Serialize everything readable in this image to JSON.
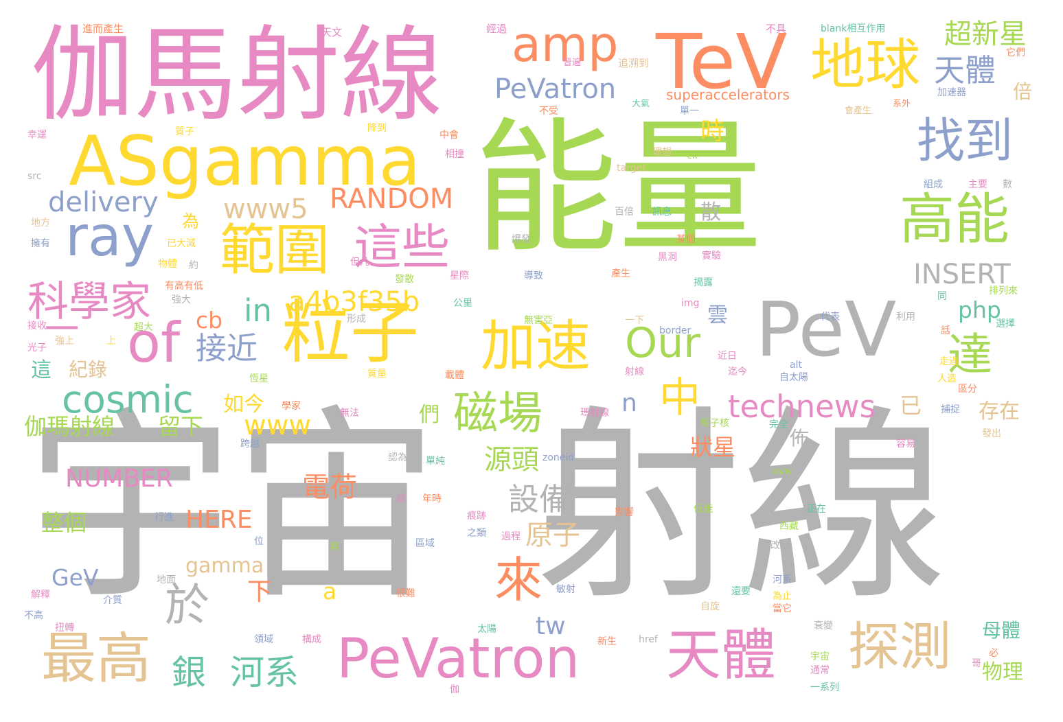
{
  "palette": {
    "pink": "#e78ac3",
    "yellow": "#ffd92f",
    "green": "#a6d854",
    "gray": "#b3b3b3",
    "orange": "#fc8d62",
    "blue": "#8da0cb",
    "teal": "#66c2a5",
    "tan": "#e5c494"
  },
  "words": [
    {
      "text": "能量",
      "color": "#a6d854"
    },
    {
      "text": "宇宙",
      "color": "#b3b3b3"
    },
    {
      "text": "射線",
      "color": "#b3b3b3"
    },
    {
      "text": "伽馬射線",
      "color": "#e78ac3"
    },
    {
      "text": "TeV",
      "color": "#fc8d62"
    },
    {
      "text": "PeV",
      "color": "#b3b3b3"
    },
    {
      "text": "ASgamma",
      "color": "#ffd92f"
    },
    {
      "text": "粒子",
      "color": "#ffd92f"
    },
    {
      "text": "amp",
      "color": "#fc8d62"
    },
    {
      "text": "地球",
      "color": "#ffd92f"
    },
    {
      "text": "ray",
      "color": "#8da0cb"
    },
    {
      "text": "範圍",
      "color": "#ffd92f"
    },
    {
      "text": "這些",
      "color": "#e78ac3"
    },
    {
      "text": "高能",
      "color": "#a6d854"
    },
    {
      "text": "找到",
      "color": "#8da0cb"
    },
    {
      "text": "加速",
      "color": "#ffd92f"
    },
    {
      "text": "of",
      "color": "#e78ac3"
    },
    {
      "text": "PeVatron",
      "color": "#e78ac3"
    },
    {
      "text": "天體",
      "color": "#e78ac3"
    },
    {
      "text": "探測",
      "color": "#e5c494"
    },
    {
      "text": "最高",
      "color": "#e5c494"
    },
    {
      "text": "磁場",
      "color": "#a6d854"
    },
    {
      "text": "科學家",
      "color": "#e78ac3"
    },
    {
      "text": "cosmic",
      "color": "#66c2a5"
    },
    {
      "text": "達",
      "color": "#a6d854"
    },
    {
      "text": "來",
      "color": "#fc8d62"
    },
    {
      "text": "中",
      "color": "#ffd92f"
    },
    {
      "text": "於",
      "color": "#b3b3b3"
    },
    {
      "text": "Our",
      "color": "#a6d854"
    },
    {
      "text": "PeVatron",
      "color": "#8da0cb"
    },
    {
      "text": "delivery",
      "color": "#8da0cb"
    },
    {
      "text": "www5",
      "color": "#e5c494"
    },
    {
      "text": "RANDOM",
      "color": "#fc8d62"
    },
    {
      "text": "INSERT",
      "color": "#b3b3b3"
    },
    {
      "text": "a4b3f35b",
      "color": "#ffd92f"
    },
    {
      "text": "technews",
      "color": "#e78ac3"
    },
    {
      "text": "NUMBER",
      "color": "#e78ac3"
    },
    {
      "text": "天體",
      "color": "#8da0cb"
    },
    {
      "text": "超新星",
      "color": "#a6d854"
    },
    {
      "text": "銀",
      "color": "#66c2a5"
    },
    {
      "text": "河系",
      "color": "#66c2a5"
    },
    {
      "text": "一",
      "color": "#e78ac3"
    },
    {
      "text": "in",
      "color": "#66c2a5"
    },
    {
      "text": "接近",
      "color": "#8da0cb"
    },
    {
      "text": "www",
      "color": "#ffd92f"
    },
    {
      "text": "源頭",
      "color": "#a6d854"
    },
    {
      "text": "設備",
      "color": "#b3b3b3"
    },
    {
      "text": "原子",
      "color": "#e5c494"
    },
    {
      "text": "電荷",
      "color": "#fc8d62"
    },
    {
      "text": "伽瑪射線",
      "color": "#a6d854"
    },
    {
      "text": "留下",
      "color": "#a6d854"
    },
    {
      "text": "整個",
      "color": "#a6d854"
    },
    {
      "text": "HERE",
      "color": "#fc8d62"
    },
    {
      "text": "gamma",
      "color": "#e5c494"
    },
    {
      "text": "GeV",
      "color": "#8da0cb"
    },
    {
      "text": "php",
      "color": "#66c2a5"
    },
    {
      "text": "已",
      "color": "#e5c494"
    },
    {
      "text": "存在",
      "color": "#e5c494"
    },
    {
      "text": "狀星",
      "color": "#fc8d62"
    },
    {
      "text": "cb",
      "color": "#fc8d62"
    },
    {
      "text": "tw",
      "color": "#8da0cb"
    },
    {
      "text": "下",
      "color": "#fc8d62"
    },
    {
      "text": "a",
      "color": "#ffd92f"
    },
    {
      "text": "n",
      "color": "#8da0cb"
    },
    {
      "text": "們",
      "color": "#a6d854"
    },
    {
      "text": "時",
      "color": "#ffd92f"
    },
    {
      "text": "為",
      "color": "#ffd92f"
    },
    {
      "text": "散",
      "color": "#b3b3b3"
    },
    {
      "text": "雲",
      "color": "#8da0cb"
    },
    {
      "text": "如今",
      "color": "#ffd92f"
    },
    {
      "text": "這",
      "color": "#66c2a5"
    },
    {
      "text": "紀錄",
      "color": "#e5c494"
    },
    {
      "text": "佈",
      "color": "#b3b3b3"
    },
    {
      "text": "倍",
      "color": "#e5c494"
    },
    {
      "text": "母體",
      "color": "#66c2a5"
    },
    {
      "text": "物理",
      "color": "#a6d854"
    },
    {
      "text": "superaccelerators",
      "color": "#fc8d62"
    },
    {
      "text": "進而產生",
      "color": "#fc8d62"
    },
    {
      "text": "天文",
      "color": "#e78ac3"
    },
    {
      "text": "經過",
      "color": "#e78ac3"
    },
    {
      "text": "不具",
      "color": "#e78ac3"
    },
    {
      "text": "blank相互作用",
      "color": "#66c2a5"
    },
    {
      "text": "它們",
      "color": "#fc8d62"
    },
    {
      "text": "晉遍",
      "color": "#e78ac3"
    },
    {
      "text": "追溯到",
      "color": "#e5c494"
    },
    {
      "text": "加速器",
      "color": "#8da0cb"
    },
    {
      "text": "大氣",
      "color": "#66c2a5"
    },
    {
      "text": "單一",
      "color": "#8da0cb"
    },
    {
      "text": "不受",
      "color": "#fc8d62"
    },
    {
      "text": "會產生",
      "color": "#e5c494"
    },
    {
      "text": "系外",
      "color": "#fc8d62"
    },
    {
      "text": "質子",
      "color": "#ffd92f"
    },
    {
      "text": "降到",
      "color": "#ffd92f"
    },
    {
      "text": "中會",
      "color": "#fc8d62"
    },
    {
      "text": "理想",
      "color": "#e5c494"
    },
    {
      "text": "ck",
      "color": "#a6d854"
    },
    {
      "text": "幸運",
      "color": "#e78ac3"
    },
    {
      "text": "相撞",
      "color": "#e78ac3"
    },
    {
      "text": "target",
      "color": "#e5c494"
    },
    {
      "text": "src",
      "color": "#b3b3b3"
    },
    {
      "text": "組成",
      "color": "#8da0cb"
    },
    {
      "text": "主要",
      "color": "#e78ac3"
    },
    {
      "text": "數",
      "color": "#b3b3b3"
    },
    {
      "text": "地方",
      "color": "#e5c494"
    },
    {
      "text": "百倍",
      "color": "#b3b3b3"
    },
    {
      "text": "訊息",
      "color": "#66c2a5"
    },
    {
      "text": "擁有",
      "color": "#8da0cb"
    },
    {
      "text": "爆發",
      "color": "#b3b3b3"
    },
    {
      "text": "某個",
      "color": "#fc8d62"
    },
    {
      "text": "已大減",
      "color": "#ffd92f"
    },
    {
      "text": "黑洞",
      "color": "#e78ac3"
    },
    {
      "text": "實驗",
      "color": "#e78ac3"
    },
    {
      "text": "物體",
      "color": "#ffd92f"
    },
    {
      "text": "約",
      "color": "#b3b3b3"
    },
    {
      "text": "有高有低",
      "color": "#fc8d62"
    },
    {
      "text": "但凡",
      "color": "#e78ac3"
    },
    {
      "text": "發散",
      "color": "#a6d854"
    },
    {
      "text": "星際",
      "color": "#e78ac3"
    },
    {
      "text": "導致",
      "color": "#8da0cb"
    },
    {
      "text": "產生",
      "color": "#fc8d62"
    },
    {
      "text": "揭露",
      "color": "#66c2a5"
    },
    {
      "text": "排列來",
      "color": "#a6d854"
    },
    {
      "text": "強大",
      "color": "#b3b3b3"
    },
    {
      "text": "公里",
      "color": "#66c2a5"
    },
    {
      "text": "同",
      "color": "#66c2a5"
    },
    {
      "text": "形成",
      "color": "#b3b3b3"
    },
    {
      "text": "無害亞",
      "color": "#a6d854"
    },
    {
      "text": "一下",
      "color": "#e5c494"
    },
    {
      "text": "img",
      "color": "#e78ac3"
    },
    {
      "text": "代表",
      "color": "#8da0cb"
    },
    {
      "text": "利用",
      "color": "#b3b3b3"
    },
    {
      "text": "選擇",
      "color": "#66c2a5"
    },
    {
      "text": "接收",
      "color": "#e78ac3"
    },
    {
      "text": "超大",
      "color": "#a6d854"
    },
    {
      "text": "border",
      "color": "#8da0cb"
    },
    {
      "text": "話",
      "color": "#fc8d62"
    },
    {
      "text": "強上",
      "color": "#e5c494"
    },
    {
      "text": "上",
      "color": "#ffd92f"
    },
    {
      "text": "光子",
      "color": "#e78ac3"
    },
    {
      "text": "近日",
      "color": "#e78ac3"
    },
    {
      "text": "走過",
      "color": "#ffd92f"
    },
    {
      "text": "alt",
      "color": "#8da0cb"
    },
    {
      "text": "射線",
      "color": "#e78ac3"
    },
    {
      "text": "迄今",
      "color": "#e78ac3"
    },
    {
      "text": "自太陽",
      "color": "#8da0cb"
    },
    {
      "text": "恆星",
      "color": "#a6d854"
    },
    {
      "text": "質量",
      "color": "#ffd92f"
    },
    {
      "text": "載體",
      "color": "#fc8d62"
    },
    {
      "text": "人造",
      "color": "#ffd92f"
    },
    {
      "text": "區分",
      "color": "#fc8d62"
    },
    {
      "text": "學家",
      "color": "#fc8d62"
    },
    {
      "text": "無法",
      "color": "#e78ac3"
    },
    {
      "text": "瑪射線",
      "color": "#e78ac3"
    },
    {
      "text": "原子核",
      "color": "#a6d854"
    },
    {
      "text": "完全",
      "color": "#66c2a5"
    },
    {
      "text": "捕捉",
      "color": "#8da0cb"
    },
    {
      "text": "發出",
      "color": "#e5c494"
    },
    {
      "text": "跨越",
      "color": "#8da0cb"
    },
    {
      "text": "容易",
      "color": "#e78ac3"
    },
    {
      "text": "zoneid",
      "color": "#8da0cb"
    },
    {
      "text": "認為",
      "color": "#b3b3b3"
    },
    {
      "text": "單純",
      "color": "#66c2a5"
    },
    {
      "text": "avw",
      "color": "#a6d854"
    },
    {
      "text": "成",
      "color": "#e78ac3"
    },
    {
      "text": "年時",
      "color": "#fc8d62"
    },
    {
      "text": "行進",
      "color": "#8da0cb"
    },
    {
      "text": "痕跡",
      "color": "#e78ac3"
    },
    {
      "text": "影響",
      "color": "#fc8d62"
    },
    {
      "text": "低能",
      "color": "#a6d854"
    },
    {
      "text": "正在",
      "color": "#66c2a5"
    },
    {
      "text": "之類",
      "color": "#8da0cb"
    },
    {
      "text": "過程",
      "color": "#e78ac3"
    },
    {
      "text": "西藏",
      "color": "#a6d854"
    },
    {
      "text": "位",
      "color": "#8da0cb"
    },
    {
      "text": "改向",
      "color": "#b3b3b3"
    },
    {
      "text": "氦",
      "color": "#a6d854"
    },
    {
      "text": "區域",
      "color": "#8da0cb"
    },
    {
      "text": "地面",
      "color": "#b3b3b3"
    },
    {
      "text": "河系",
      "color": "#8da0cb"
    },
    {
      "text": "解釋",
      "color": "#e78ac3"
    },
    {
      "text": "介質",
      "color": "#8da0cb"
    },
    {
      "text": "很難",
      "color": "#fc8d62"
    },
    {
      "text": "敏射",
      "color": "#8da0cb"
    },
    {
      "text": "還要",
      "color": "#66c2a5"
    },
    {
      "text": "為止",
      "color": "#ffd92f"
    },
    {
      "text": "當它",
      "color": "#fc8d62"
    },
    {
      "text": "不高",
      "color": "#8da0cb"
    },
    {
      "text": "自旋",
      "color": "#e5c494"
    },
    {
      "text": "扭轉",
      "color": "#e78ac3"
    },
    {
      "text": "太陽",
      "color": "#66c2a5"
    },
    {
      "text": "衰變",
      "color": "#b3b3b3"
    },
    {
      "text": "領域",
      "color": "#8da0cb"
    },
    {
      "text": "構成",
      "color": "#e78ac3"
    },
    {
      "text": "新生",
      "color": "#fc8d62"
    },
    {
      "text": "href",
      "color": "#b3b3b3"
    },
    {
      "text": "宇宙",
      "color": "#a6d854"
    },
    {
      "text": "必",
      "color": "#fc8d62"
    },
    {
      "text": "哥",
      "color": "#e78ac3"
    },
    {
      "text": "通常",
      "color": "#e78ac3"
    },
    {
      "text": "伽",
      "color": "#e78ac3"
    },
    {
      "text": "一系列",
      "color": "#66c2a5"
    }
  ]
}
